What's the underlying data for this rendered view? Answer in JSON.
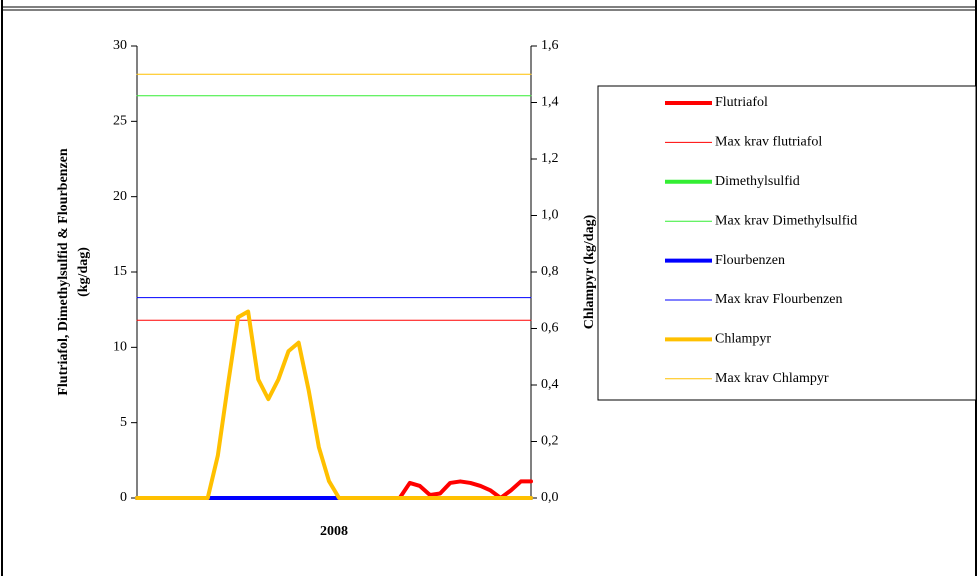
{
  "chart_data": {
    "type": "line",
    "xlabel": "2008",
    "ylabel": [
      "Flutriafol, Dimethylsulfid & Flourbenzen",
      "(kg/dag)"
    ],
    "y2label": "Chlampyr (kg/dag)",
    "ylim": [
      0,
      30
    ],
    "yticks": [
      0,
      5,
      10,
      15,
      20,
      25,
      30
    ],
    "y2lim": [
      0,
      1.6
    ],
    "y2ticks": [
      {
        "value": 0,
        "label": "0,0"
      },
      {
        "value": 0.2,
        "label": "0,2"
      },
      {
        "value": 0.4,
        "label": "0,4"
      },
      {
        "value": 0.6,
        "label": "0,6"
      },
      {
        "value": 0.8,
        "label": "0,8"
      },
      {
        "value": 1.0,
        "label": "1,0"
      },
      {
        "value": 1.2,
        "label": "1,2"
      },
      {
        "value": 1.4,
        "label": "1,4"
      },
      {
        "value": 1.6,
        "label": "1,6"
      }
    ],
    "legend": "right",
    "series": [
      {
        "name": "Flutriafol",
        "color": "#ff0000",
        "line_width": 4,
        "axis": "y",
        "values": [
          0,
          0,
          0,
          0,
          0,
          0,
          0,
          0,
          0,
          0,
          0,
          0,
          0,
          0,
          0,
          0,
          0,
          0,
          0,
          0,
          0,
          0,
          0,
          0,
          0,
          0,
          0,
          1.0,
          0.8,
          0.2,
          0.3,
          1.0,
          1.1,
          1.0,
          0.8,
          0.5,
          0,
          0.5,
          1.1,
          1.1
        ]
      },
      {
        "name": "Max krav flutriafol",
        "color": "#ff0000",
        "line_width": 1,
        "axis": "y",
        "values": [
          11.8,
          11.8,
          11.8,
          11.8,
          11.8,
          11.8,
          11.8,
          11.8,
          11.8,
          11.8,
          11.8,
          11.8,
          11.8,
          11.8,
          11.8,
          11.8,
          11.8,
          11.8,
          11.8,
          11.8,
          11.8,
          11.8,
          11.8,
          11.8,
          11.8,
          11.8,
          11.8,
          11.8,
          11.8,
          11.8,
          11.8,
          11.8,
          11.8,
          11.8,
          11.8,
          11.8,
          11.8,
          11.8,
          11.8,
          11.8
        ]
      },
      {
        "name": "Dimethylsulfid",
        "color": "#33ee33",
        "line_width": 4,
        "axis": "y",
        "values": [
          0,
          0,
          0,
          0,
          0,
          0,
          0,
          0,
          0,
          0,
          0,
          0,
          0,
          0,
          0,
          0,
          0,
          0,
          0,
          0,
          0,
          0,
          0,
          0,
          0,
          0,
          0,
          0,
          0,
          0,
          0,
          0,
          0,
          0,
          0,
          0,
          0,
          0,
          0,
          0
        ]
      },
      {
        "name": "Max krav Dimethylsulfid",
        "color": "#33ee33",
        "line_width": 1,
        "axis": "y",
        "values": [
          26.7,
          26.7,
          26.7,
          26.7,
          26.7,
          26.7,
          26.7,
          26.7,
          26.7,
          26.7,
          26.7,
          26.7,
          26.7,
          26.7,
          26.7,
          26.7,
          26.7,
          26.7,
          26.7,
          26.7,
          26.7,
          26.7,
          26.7,
          26.7,
          26.7,
          26.7,
          26.7,
          26.7,
          26.7,
          26.7,
          26.7,
          26.7,
          26.7,
          26.7,
          26.7,
          26.7,
          26.7,
          26.7,
          26.7,
          26.7
        ]
      },
      {
        "name": "Flourbenzen",
        "color": "#0000ff",
        "line_width": 4,
        "axis": "y",
        "values": [
          0,
          0,
          0,
          0,
          0,
          0,
          0,
          0,
          0,
          0,
          0,
          0,
          0,
          0,
          0,
          0,
          0,
          0,
          0,
          0,
          0,
          0,
          0,
          0,
          0,
          0,
          0,
          0,
          0,
          0,
          0,
          0,
          0,
          0,
          0,
          0,
          0,
          0,
          0,
          0
        ]
      },
      {
        "name": "Max krav Flourbenzen",
        "color": "#0000ff",
        "line_width": 1,
        "axis": "y",
        "values": [
          13.3,
          13.3,
          13.3,
          13.3,
          13.3,
          13.3,
          13.3,
          13.3,
          13.3,
          13.3,
          13.3,
          13.3,
          13.3,
          13.3,
          13.3,
          13.3,
          13.3,
          13.3,
          13.3,
          13.3,
          13.3,
          13.3,
          13.3,
          13.3,
          13.3,
          13.3,
          13.3,
          13.3,
          13.3,
          13.3,
          13.3,
          13.3,
          13.3,
          13.3,
          13.3,
          13.3,
          13.3,
          13.3,
          13.3,
          13.3
        ]
      },
      {
        "name": "Chlampyr",
        "color": "#ffc000",
        "line_width": 4,
        "axis": "y2",
        "values": [
          0,
          0,
          0,
          0,
          0,
          0,
          0,
          0,
          0.15,
          0.4,
          0.64,
          0.66,
          0.42,
          0.35,
          0.42,
          0.52,
          0.55,
          0.38,
          0.18,
          0.06,
          0,
          0,
          0,
          0,
          0,
          0,
          0,
          0,
          0,
          0,
          0,
          0,
          0,
          0,
          0,
          0,
          0,
          0,
          0,
          0
        ]
      },
      {
        "name": "Max krav Chlampyr",
        "color": "#ffc000",
        "line_width": 1,
        "axis": "y2",
        "values": [
          1.5,
          1.5,
          1.5,
          1.5,
          1.5,
          1.5,
          1.5,
          1.5,
          1.5,
          1.5,
          1.5,
          1.5,
          1.5,
          1.5,
          1.5,
          1.5,
          1.5,
          1.5,
          1.5,
          1.5,
          1.5,
          1.5,
          1.5,
          1.5,
          1.5,
          1.5,
          1.5,
          1.5,
          1.5,
          1.5,
          1.5,
          1.5,
          1.5,
          1.5,
          1.5,
          1.5,
          1.5,
          1.5,
          1.5,
          1.5
        ]
      }
    ]
  }
}
